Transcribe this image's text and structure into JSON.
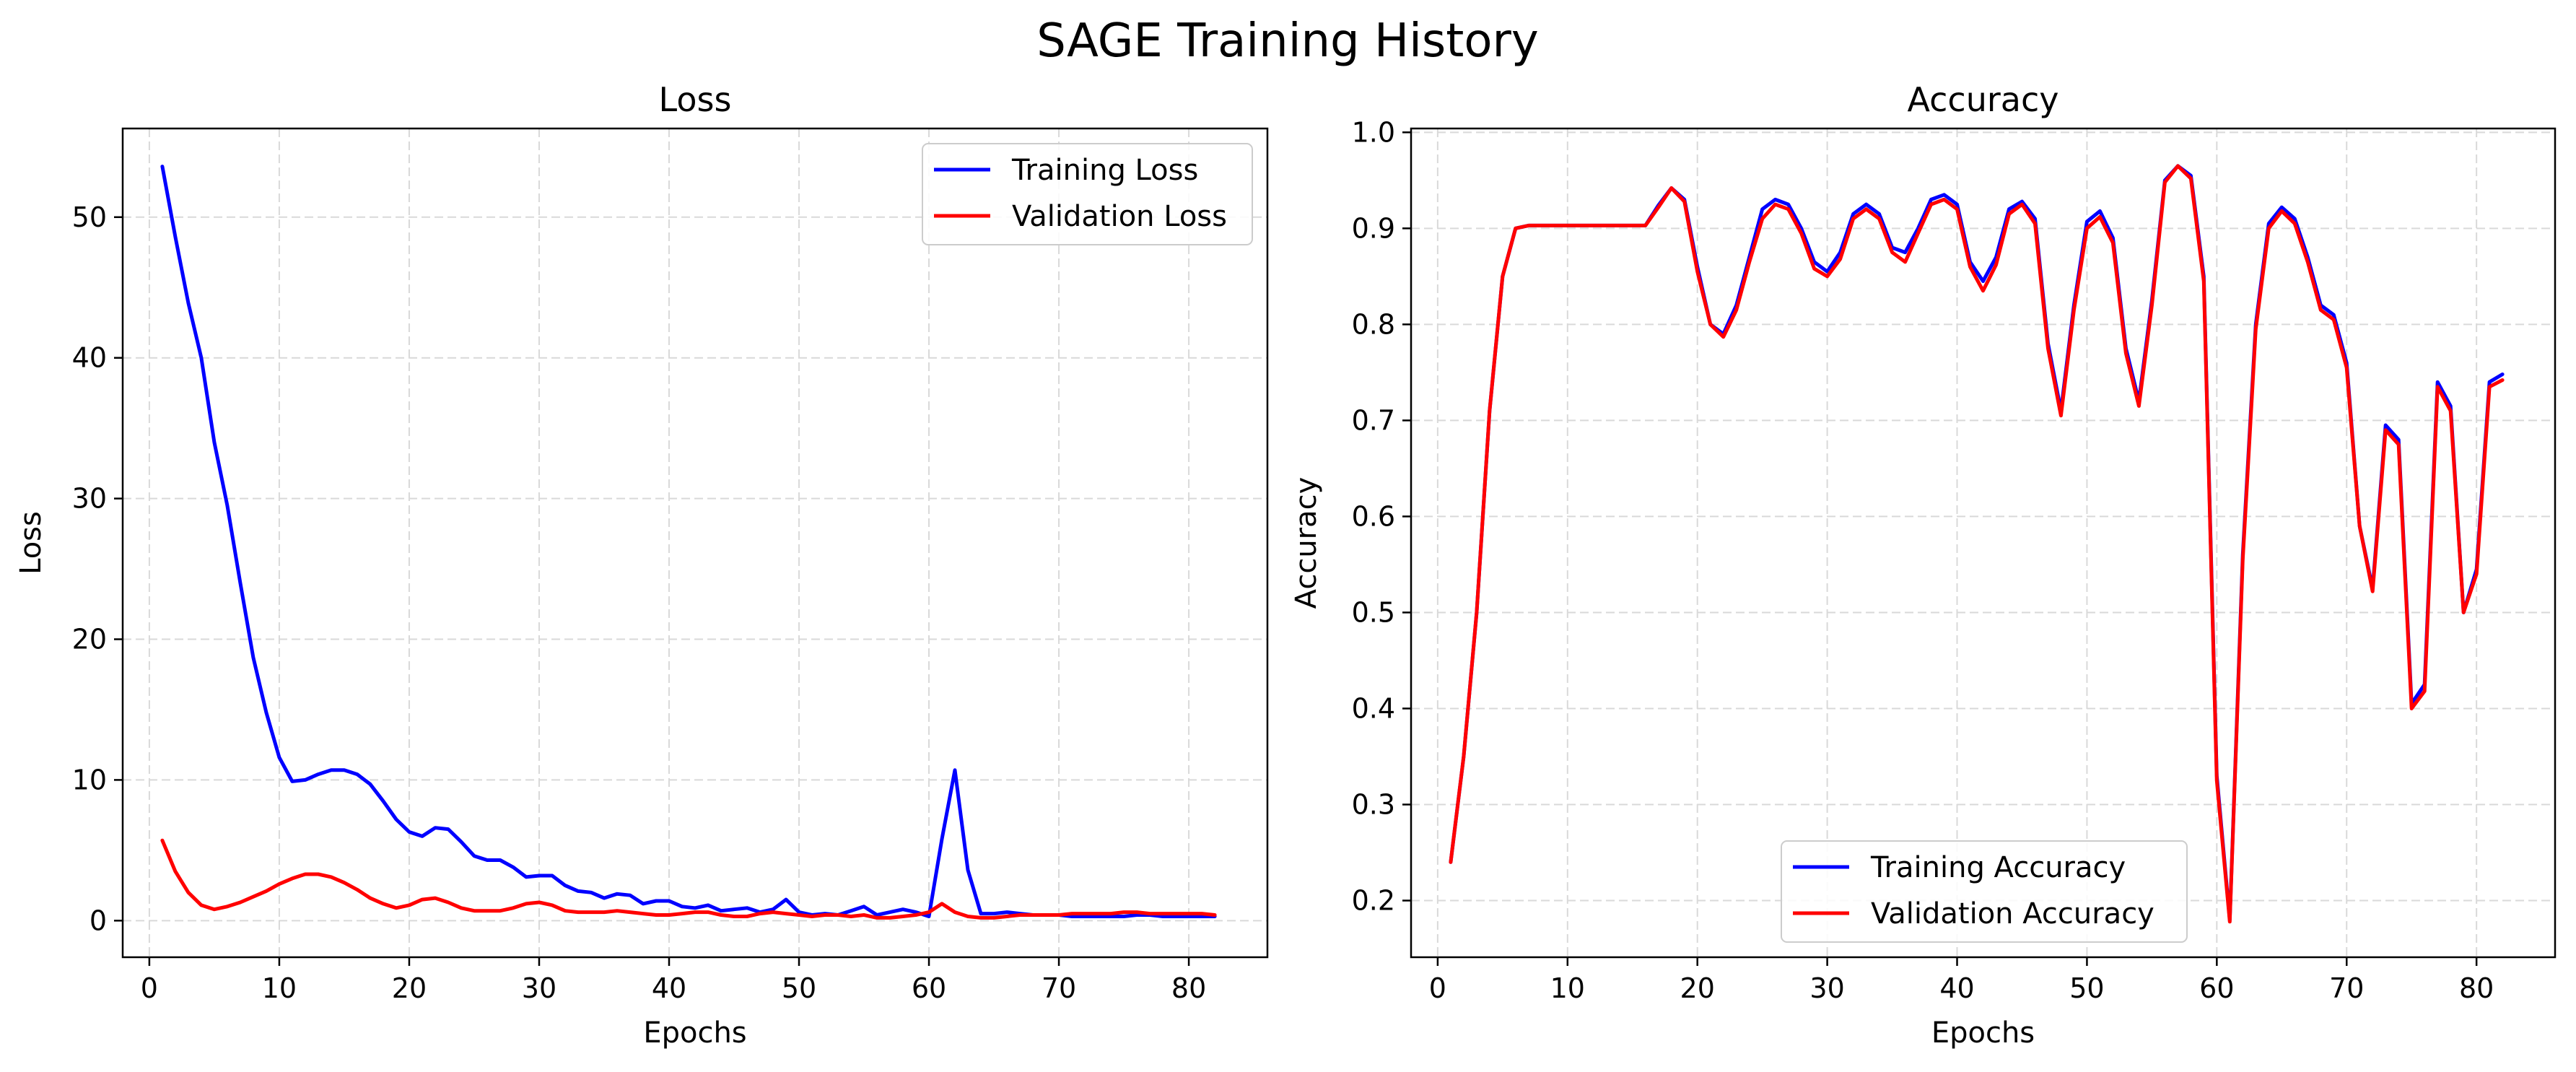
{
  "figure": {
    "title": "SAGE Training History"
  },
  "colors": {
    "train": "#0000ff",
    "val": "#ff0000",
    "grid": "#d9d9d9",
    "axes": "#000000"
  },
  "chart_data": [
    {
      "type": "line",
      "title": "Loss",
      "xlabel": "Epochs",
      "ylabel": "Loss",
      "xlim": [
        -2.05,
        86.05
      ],
      "ylim": [
        -2.6,
        56.3
      ],
      "xticks": [
        0,
        10,
        20,
        30,
        40,
        50,
        60,
        70,
        80
      ],
      "yticks": [
        0,
        10,
        20,
        30,
        40,
        50
      ],
      "grid": true,
      "legend_position": "upper right",
      "x": [
        1,
        2,
        3,
        4,
        5,
        6,
        7,
        8,
        9,
        10,
        11,
        12,
        13,
        14,
        15,
        16,
        17,
        18,
        19,
        20,
        21,
        22,
        23,
        24,
        25,
        26,
        27,
        28,
        29,
        30,
        31,
        32,
        33,
        34,
        35,
        36,
        37,
        38,
        39,
        40,
        41,
        42,
        43,
        44,
        45,
        46,
        47,
        48,
        49,
        50,
        51,
        52,
        53,
        54,
        55,
        56,
        57,
        58,
        59,
        60,
        61,
        62,
        63,
        64,
        65,
        66,
        67,
        68,
        69,
        70,
        71,
        72,
        73,
        74,
        75,
        76,
        77,
        78,
        79,
        80,
        81,
        82
      ],
      "series": [
        {
          "name": "Training Loss",
          "color": "#0000ff",
          "values": [
            53.6,
            48.6,
            43.9,
            40.0,
            34.0,
            29.5,
            24.0,
            18.7,
            14.8,
            11.6,
            9.9,
            10.0,
            10.4,
            10.7,
            10.7,
            10.4,
            9.7,
            8.5,
            7.2,
            6.3,
            6.0,
            6.6,
            6.5,
            5.6,
            4.6,
            4.3,
            4.3,
            3.8,
            3.1,
            3.2,
            3.2,
            2.5,
            2.1,
            2.0,
            1.6,
            1.9,
            1.8,
            1.2,
            1.4,
            1.4,
            1.0,
            0.9,
            1.1,
            0.7,
            0.8,
            0.9,
            0.6,
            0.8,
            1.5,
            0.6,
            0.4,
            0.5,
            0.4,
            0.7,
            1.0,
            0.4,
            0.6,
            0.8,
            0.6,
            0.3,
            5.8,
            10.7,
            3.6,
            0.5,
            0.5,
            0.6,
            0.5,
            0.4,
            0.4,
            0.4,
            0.3,
            0.3,
            0.3,
            0.3,
            0.3,
            0.4,
            0.4,
            0.3,
            0.3,
            0.3,
            0.3,
            0.3
          ]
        },
        {
          "name": "Validation Loss",
          "color": "#ff0000",
          "values": [
            5.7,
            3.5,
            2.0,
            1.1,
            0.8,
            1.0,
            1.3,
            1.7,
            2.1,
            2.6,
            3.0,
            3.3,
            3.3,
            3.1,
            2.7,
            2.2,
            1.6,
            1.2,
            0.9,
            1.1,
            1.5,
            1.6,
            1.3,
            0.9,
            0.7,
            0.7,
            0.7,
            0.9,
            1.2,
            1.3,
            1.1,
            0.7,
            0.6,
            0.6,
            0.6,
            0.7,
            0.6,
            0.5,
            0.4,
            0.4,
            0.5,
            0.6,
            0.6,
            0.4,
            0.3,
            0.3,
            0.5,
            0.6,
            0.5,
            0.4,
            0.3,
            0.4,
            0.4,
            0.3,
            0.4,
            0.2,
            0.2,
            0.3,
            0.4,
            0.6,
            1.2,
            0.6,
            0.3,
            0.2,
            0.2,
            0.3,
            0.4,
            0.4,
            0.4,
            0.4,
            0.5,
            0.5,
            0.5,
            0.5,
            0.6,
            0.6,
            0.5,
            0.5,
            0.5,
            0.5,
            0.5,
            0.4
          ]
        }
      ]
    },
    {
      "type": "line",
      "title": "Accuracy",
      "xlabel": "Epochs",
      "ylabel": "Accuracy",
      "xlim": [
        -2.05,
        86.05
      ],
      "ylim": [
        0.141,
        1.004
      ],
      "xticks": [
        0,
        10,
        20,
        30,
        40,
        50,
        60,
        70,
        80
      ],
      "yticks": [
        0.2,
        0.3,
        0.4,
        0.5,
        0.6,
        0.7,
        0.8,
        0.9,
        1.0
      ],
      "ytick_labels": [
        "0.2",
        "0.3",
        "0.4",
        "0.5",
        "0.6",
        "0.7",
        "0.8",
        "0.9",
        "1.0"
      ],
      "grid": true,
      "legend_position": "lower center",
      "x": [
        1,
        2,
        3,
        4,
        5,
        6,
        7,
        8,
        9,
        10,
        11,
        12,
        13,
        14,
        15,
        16,
        17,
        18,
        19,
        20,
        21,
        22,
        23,
        24,
        25,
        26,
        27,
        28,
        29,
        30,
        31,
        32,
        33,
        34,
        35,
        36,
        37,
        38,
        39,
        40,
        41,
        42,
        43,
        44,
        45,
        46,
        47,
        48,
        49,
        50,
        51,
        52,
        53,
        54,
        55,
        56,
        57,
        58,
        59,
        60,
        61,
        62,
        63,
        64,
        65,
        66,
        67,
        68,
        69,
        70,
        71,
        72,
        73,
        74,
        75,
        76,
        77,
        78,
        79,
        80,
        81,
        82
      ],
      "series": [
        {
          "name": "Training Accuracy",
          "color": "#0000ff",
          "values": [
            0.24,
            0.35,
            0.5,
            0.71,
            0.85,
            0.9,
            0.903,
            0.903,
            0.903,
            0.903,
            0.903,
            0.903,
            0.903,
            0.903,
            0.903,
            0.903,
            0.924,
            0.942,
            0.93,
            0.86,
            0.8,
            0.79,
            0.82,
            0.87,
            0.92,
            0.93,
            0.925,
            0.9,
            0.865,
            0.855,
            0.875,
            0.915,
            0.925,
            0.915,
            0.88,
            0.875,
            0.9,
            0.93,
            0.935,
            0.925,
            0.865,
            0.845,
            0.87,
            0.92,
            0.928,
            0.91,
            0.78,
            0.71,
            0.82,
            0.907,
            0.918,
            0.89,
            0.775,
            0.72,
            0.825,
            0.95,
            0.965,
            0.955,
            0.85,
            0.33,
            0.18,
            0.56,
            0.8,
            0.905,
            0.922,
            0.91,
            0.87,
            0.82,
            0.81,
            0.76,
            0.59,
            0.525,
            0.695,
            0.68,
            0.405,
            0.425,
            0.74,
            0.715,
            0.5,
            0.545,
            0.74,
            0.748
          ]
        },
        {
          "name": "Validation Accuracy",
          "color": "#ff0000",
          "values": [
            0.24,
            0.35,
            0.5,
            0.71,
            0.85,
            0.9,
            0.903,
            0.903,
            0.903,
            0.903,
            0.903,
            0.903,
            0.903,
            0.903,
            0.903,
            0.903,
            0.922,
            0.942,
            0.928,
            0.855,
            0.8,
            0.787,
            0.815,
            0.865,
            0.91,
            0.925,
            0.92,
            0.895,
            0.858,
            0.85,
            0.868,
            0.91,
            0.92,
            0.91,
            0.875,
            0.865,
            0.895,
            0.925,
            0.93,
            0.92,
            0.86,
            0.835,
            0.862,
            0.915,
            0.925,
            0.905,
            0.775,
            0.705,
            0.815,
            0.9,
            0.912,
            0.885,
            0.77,
            0.715,
            0.82,
            0.948,
            0.965,
            0.952,
            0.845,
            0.325,
            0.178,
            0.555,
            0.795,
            0.9,
            0.918,
            0.905,
            0.865,
            0.815,
            0.805,
            0.755,
            0.59,
            0.522,
            0.69,
            0.675,
            0.4,
            0.418,
            0.735,
            0.71,
            0.5,
            0.54,
            0.735,
            0.742
          ]
        }
      ]
    }
  ]
}
